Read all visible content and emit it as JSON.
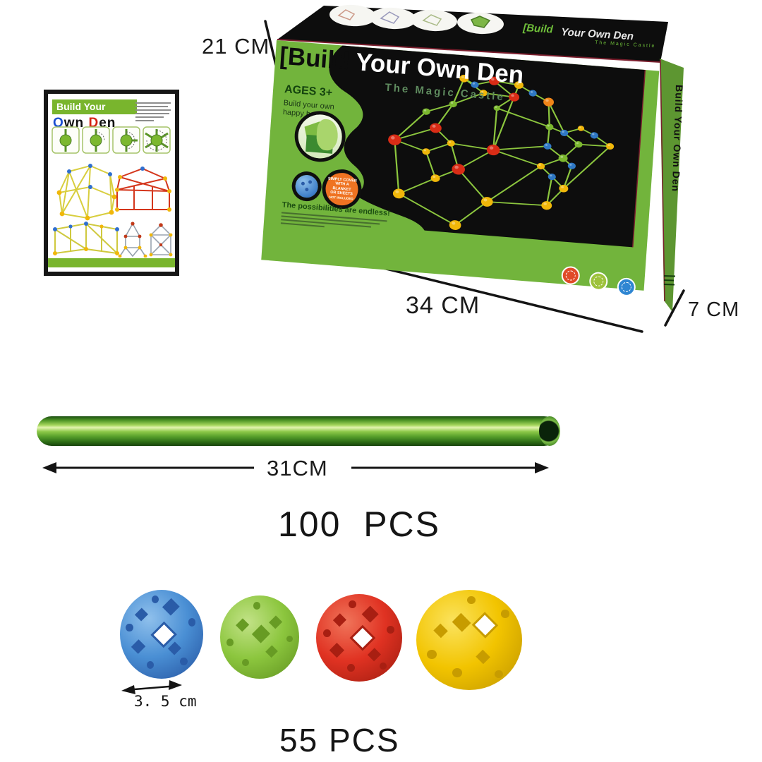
{
  "dimensions": {
    "box_height": "21 CM",
    "box_width": "34 CM",
    "box_depth": "7 CM",
    "rod_length": "31CM",
    "ball_diameter": "3. 5 cm"
  },
  "counts": {
    "rods": "100  PCS",
    "balls": "55 PCS"
  },
  "box_front": {
    "bracket": "[",
    "title_black": "Build",
    "title_white": "Your Own Den",
    "subtitle": "The Magic Castle",
    "ages": "AGES 3+",
    "tagline_line1": "Build your own",
    "tagline_line2": "happy house",
    "cover_lines": [
      "SIMPLY COVER",
      "WITH A BLANKET",
      "OR SHEETS",
      "NOT INCLUDED"
    ],
    "possibilities": "The possibilities are endless!"
  },
  "box_top": {
    "title_green": "[Build",
    "title_white": "Your Own Den",
    "subtitle": "The Magic Castle"
  },
  "box_side": {
    "title": "Build Your Own Den"
  },
  "leaflet": {
    "header": "Build Your",
    "title_o": "O",
    "title_wn": "wn",
    "title_d": "D",
    "title_en": "en"
  },
  "colors": {
    "box_green": "#72b43c",
    "side_green": "#5d9631",
    "strip_green": "#72b43c",
    "rod_line": "#8cc63e",
    "ball_yellow": "#f0b70a",
    "ball_red": "#d92c16",
    "ball_blue": "#2f78c4",
    "node_green": "#7cb82f",
    "ball_orange": "#ef8418",
    "badge_red": "#e04b28",
    "badge_green": "#9dc23b",
    "badge_blue": "#2f86d2"
  },
  "illustrations": {
    "castle": {
      "nodes": [
        [
          130,
          22,
          "Y",
          7
        ],
        [
          147,
          32,
          "B",
          6
        ],
        [
          176,
          22,
          "R",
          8
        ],
        [
          214,
          26,
          "Y",
          7
        ],
        [
          236,
          39,
          "B",
          6
        ],
        [
          208,
          49,
          "R",
          8
        ],
        [
          161,
          46,
          "Y",
          6
        ],
        [
          261,
          53,
          "O",
          8
        ],
        [
          116,
          71,
          "G",
          6
        ],
        [
          76,
          89,
          "G",
          6
        ],
        [
          183,
          72,
          "G",
          5
        ],
        [
          265,
          99,
          "G",
          6
        ],
        [
          92,
          118,
          "R",
          9
        ],
        [
          31,
          146,
          "R",
          10
        ],
        [
          117,
          144,
          "Y",
          6
        ],
        [
          182,
          150,
          "R",
          10
        ],
        [
          80,
          163,
          "Y",
          6
        ],
        [
          131,
          191,
          "R",
          10
        ],
        [
          97,
          211,
          "Y",
          7
        ],
        [
          43,
          245,
          "Y",
          9
        ],
        [
          178,
          247,
          "Y",
          9
        ],
        [
          269,
          245,
          "Y",
          8
        ],
        [
          132,
          295,
          "Y",
          9
        ],
        [
          288,
          108,
          "B",
          6
        ],
        [
          334,
          108,
          "B",
          6
        ],
        [
          313,
          97,
          "Y",
          5
        ],
        [
          311,
          127,
          "G",
          6
        ],
        [
          359,
          126,
          "Y",
          6
        ],
        [
          264,
          135,
          "B",
          6
        ],
        [
          289,
          155,
          "G",
          7
        ],
        [
          303,
          168,
          "B",
          6
        ],
        [
          256,
          173,
          "Y",
          6
        ],
        [
          274,
          191,
          "B",
          6
        ],
        [
          293,
          211,
          "Y",
          7
        ]
      ],
      "edges": [
        [
          0,
          1
        ],
        [
          1,
          2
        ],
        [
          2,
          3
        ],
        [
          3,
          4
        ],
        [
          4,
          7
        ],
        [
          0,
          6
        ],
        [
          6,
          5
        ],
        [
          5,
          3
        ],
        [
          2,
          5
        ],
        [
          6,
          8
        ],
        [
          5,
          10
        ],
        [
          10,
          15
        ],
        [
          5,
          15
        ],
        [
          0,
          8
        ],
        [
          8,
          9
        ],
        [
          8,
          12
        ],
        [
          9,
          13
        ],
        [
          12,
          13
        ],
        [
          12,
          14
        ],
        [
          14,
          15
        ],
        [
          14,
          16
        ],
        [
          13,
          16
        ],
        [
          14,
          17
        ],
        [
          15,
          17
        ],
        [
          16,
          18
        ],
        [
          17,
          18
        ],
        [
          18,
          19
        ],
        [
          13,
          19
        ],
        [
          17,
          20
        ],
        [
          19,
          22
        ],
        [
          20,
          22
        ],
        [
          20,
          21
        ],
        [
          15,
          31
        ],
        [
          15,
          28
        ],
        [
          11,
          7
        ],
        [
          11,
          23
        ],
        [
          11,
          28
        ],
        [
          11,
          10
        ],
        [
          23,
          25
        ],
        [
          25,
          24
        ],
        [
          23,
          26
        ],
        [
          24,
          27
        ],
        [
          26,
          27
        ],
        [
          26,
          29
        ],
        [
          28,
          29
        ],
        [
          29,
          30
        ],
        [
          29,
          31
        ],
        [
          31,
          32
        ],
        [
          32,
          33
        ],
        [
          30,
          33
        ],
        [
          27,
          33
        ],
        [
          21,
          33
        ],
        [
          21,
          32
        ],
        [
          7,
          23
        ],
        [
          20,
          31
        ]
      ]
    }
  }
}
